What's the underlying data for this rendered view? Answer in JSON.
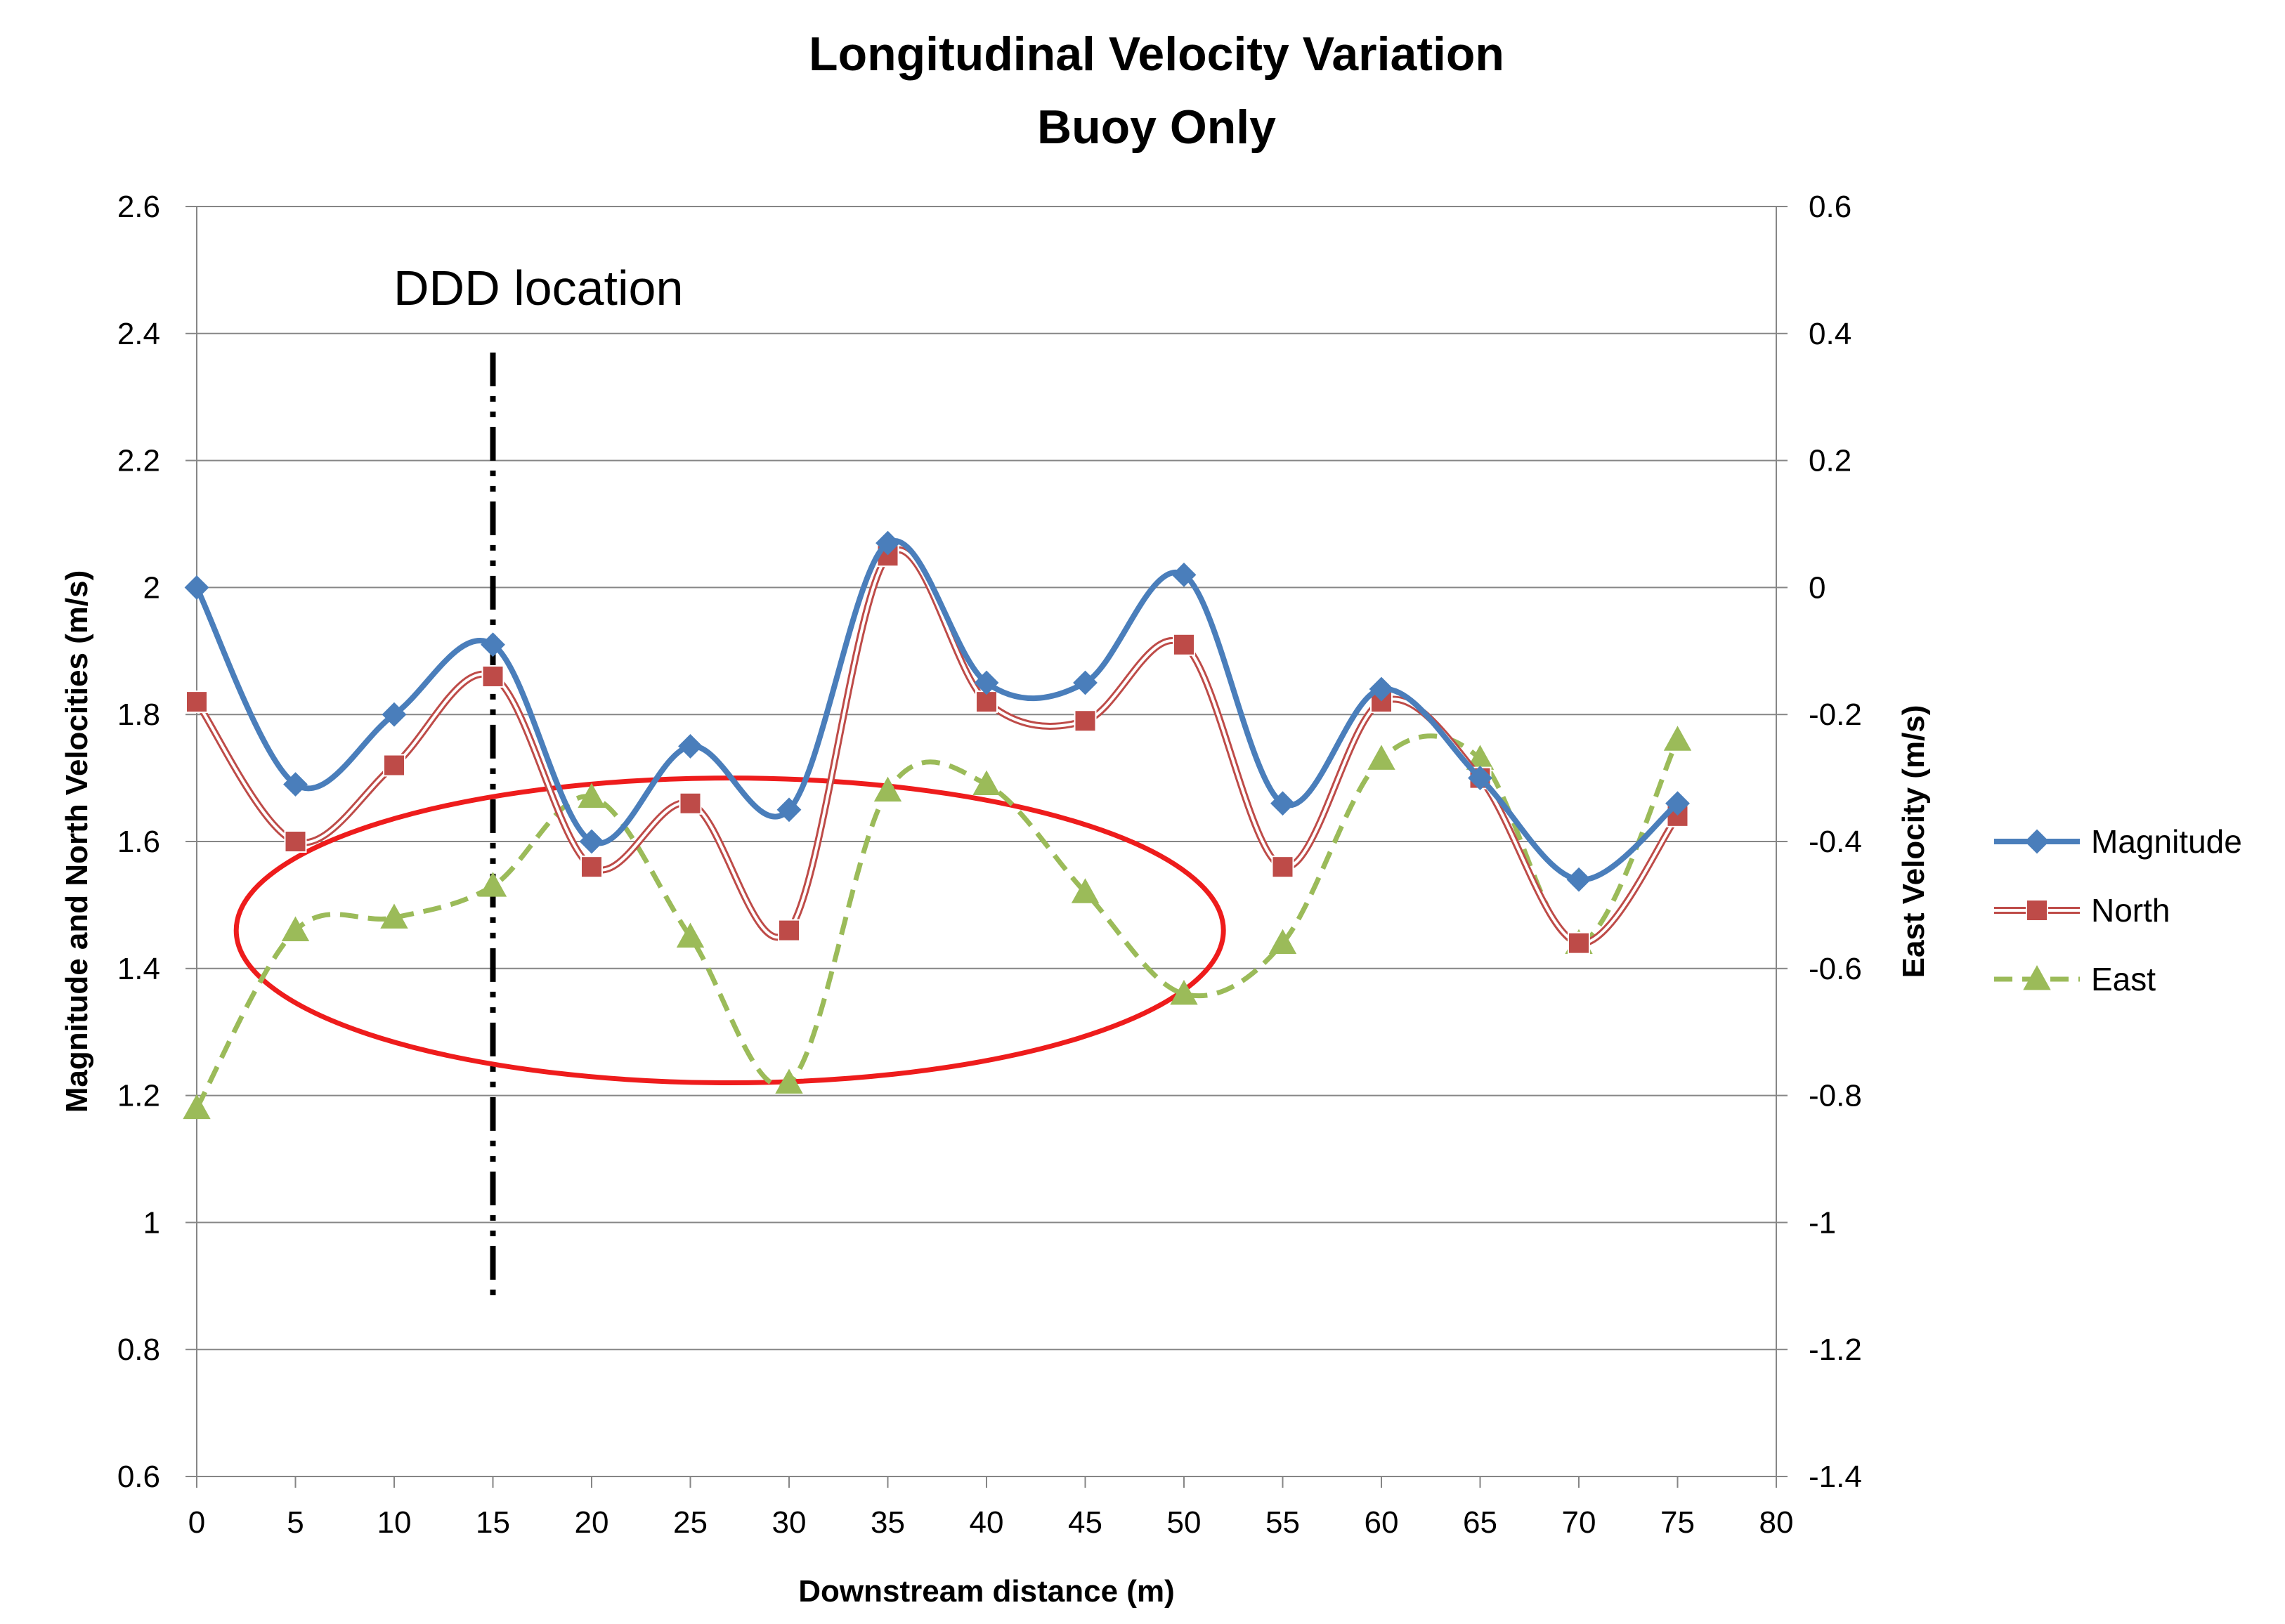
{
  "chart_data": {
    "type": "line",
    "title": "Longitudinal Velocity Variation",
    "subtitle": "Buoy Only",
    "xlabel": "Downstream distance (m)",
    "ylabel": "Magnitude and North Velocities (m/s)",
    "y2label": "East Velocity (m/s)",
    "xlim": [
      0,
      80
    ],
    "ylim": [
      0.6,
      2.6
    ],
    "y2lim": [
      -1.4,
      0.6
    ],
    "x_ticks": [
      "0",
      "5",
      "10",
      "15",
      "20",
      "25",
      "30",
      "35",
      "40",
      "45",
      "50",
      "55",
      "60",
      "65",
      "70",
      "75",
      "80"
    ],
    "y_ticks": [
      "0.6",
      "0.8",
      "1",
      "1.2",
      "1.4",
      "1.6",
      "1.8",
      "2",
      "2.2",
      "2.4",
      "2.6"
    ],
    "y2_ticks": [
      "-1.4",
      "-1.2",
      "-1",
      "-0.8",
      "-0.6",
      "-0.4",
      "-0.2",
      "0",
      "0.2",
      "0.4",
      "0.6"
    ],
    "grid": "horizontal",
    "legend_position": "right",
    "x": [
      0,
      5,
      10,
      15,
      20,
      25,
      30,
      35,
      40,
      45,
      50,
      55,
      60,
      65,
      70,
      75
    ],
    "series": [
      {
        "name": "Magnitude",
        "axis": "left",
        "color": "#4a7ebb",
        "marker": "diamond",
        "values": [
          2.0,
          1.69,
          1.8,
          1.91,
          1.6,
          1.75,
          1.65,
          2.07,
          1.85,
          1.85,
          2.02,
          1.66,
          1.84,
          1.7,
          1.54,
          1.66
        ]
      },
      {
        "name": "North",
        "axis": "left",
        "color": "#be4b48",
        "marker": "square",
        "values": [
          1.82,
          1.6,
          1.72,
          1.86,
          1.56,
          1.66,
          1.46,
          2.05,
          1.82,
          1.79,
          1.91,
          1.56,
          1.82,
          1.7,
          1.44,
          1.64
        ]
      },
      {
        "name": "East",
        "axis": "right",
        "color": "#9bbb59",
        "marker": "triangle",
        "values": [
          -0.82,
          -0.54,
          -0.52,
          -0.47,
          -0.33,
          -0.55,
          -0.78,
          -0.32,
          -0.31,
          -0.48,
          -0.64,
          -0.56,
          -0.27,
          -0.27,
          -0.56,
          -0.24
        ]
      }
    ],
    "annotations": {
      "ddd_label": "DDD location",
      "ddd_x": 15,
      "ddd_y_range": [
        0.88,
        2.37
      ],
      "ellipse": {
        "cx": 27,
        "cy": 1.46,
        "rx": 25,
        "ry": 0.24,
        "color": "#ee1c1c"
      }
    }
  }
}
